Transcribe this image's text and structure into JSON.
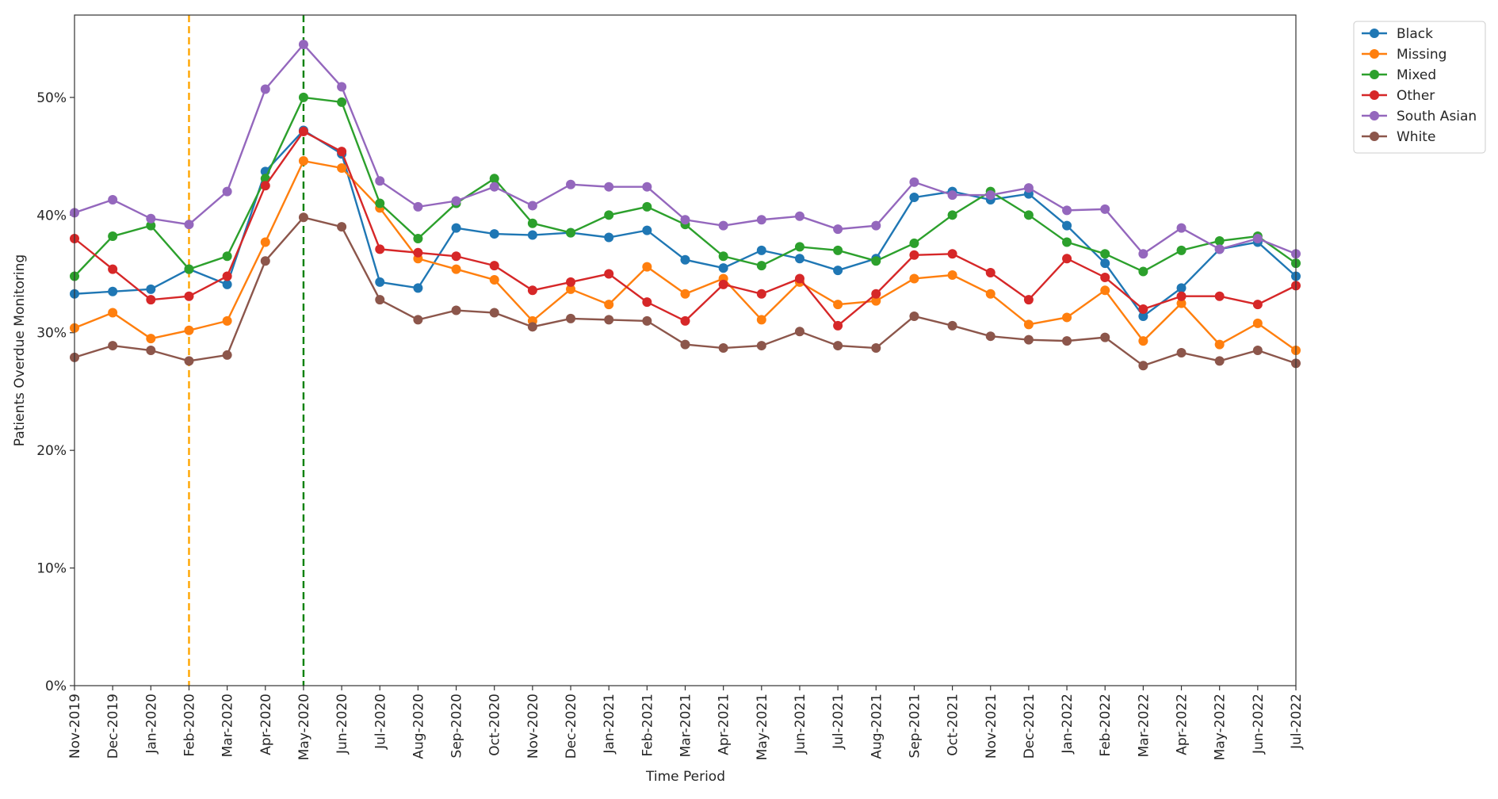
{
  "chart_data": {
    "type": "line",
    "x_label": "Time Period",
    "y_label": "Patients Overdue Monitoring",
    "categories": [
      "Nov-2019",
      "Dec-2019",
      "Jan-2020",
      "Feb-2020",
      "Mar-2020",
      "Apr-2020",
      "May-2020",
      "Jun-2020",
      "Jul-2020",
      "Aug-2020",
      "Sep-2020",
      "Oct-2020",
      "Nov-2020",
      "Dec-2020",
      "Jan-2021",
      "Feb-2021",
      "Mar-2021",
      "Apr-2021",
      "May-2021",
      "Jun-2021",
      "Jul-2021",
      "Aug-2021",
      "Sep-2021",
      "Oct-2021",
      "Nov-2021",
      "Dec-2021",
      "Jan-2022",
      "Feb-2022",
      "Mar-2022",
      "Apr-2022",
      "May-2022",
      "Jun-2022",
      "Jul-2022"
    ],
    "series": [
      {
        "name": "Black",
        "color": "#1f77b4",
        "values": [
          33.3,
          33.5,
          33.7,
          35.4,
          34.1,
          43.7,
          47.2,
          45.2,
          34.3,
          33.8,
          38.9,
          38.4,
          38.3,
          38.5,
          38.1,
          38.7,
          36.2,
          35.5,
          37.0,
          36.3,
          35.3,
          36.3,
          41.5,
          42.0,
          41.3,
          41.8,
          39.1,
          35.9,
          31.4,
          33.8,
          37.1,
          37.7,
          34.8
        ]
      },
      {
        "name": "Missing",
        "color": "#ff7f0e",
        "values": [
          30.4,
          31.7,
          29.5,
          30.2,
          31.0,
          37.7,
          44.6,
          44.0,
          40.6,
          36.3,
          35.4,
          34.5,
          31.0,
          33.7,
          32.4,
          35.6,
          33.3,
          34.6,
          31.1,
          34.3,
          32.4,
          32.7,
          34.6,
          34.9,
          33.3,
          30.7,
          31.3,
          33.6,
          29.3,
          32.5,
          29.0,
          30.8,
          28.5
        ]
      },
      {
        "name": "Mixed",
        "color": "#2ca02c",
        "values": [
          34.8,
          38.2,
          39.1,
          35.4,
          36.5,
          43.1,
          50.0,
          49.6,
          41.0,
          38.0,
          41.0,
          43.1,
          39.3,
          38.5,
          40.0,
          40.7,
          39.2,
          36.5,
          35.7,
          37.3,
          37.0,
          36.1,
          37.6,
          40.0,
          42.0,
          40.0,
          37.7,
          36.7,
          35.2,
          37.0,
          37.8,
          38.2,
          35.9
        ]
      },
      {
        "name": "Other",
        "color": "#d62728",
        "values": [
          38.0,
          35.4,
          32.8,
          33.1,
          34.8,
          42.5,
          47.1,
          45.4,
          37.1,
          36.8,
          36.5,
          35.7,
          33.6,
          34.3,
          35.0,
          32.6,
          31.0,
          34.1,
          33.3,
          34.6,
          30.6,
          33.3,
          36.6,
          36.7,
          35.1,
          32.8,
          36.3,
          34.7,
          32.0,
          33.1,
          33.1,
          32.4,
          34.0
        ]
      },
      {
        "name": "South Asian",
        "color": "#9467bd",
        "values": [
          40.2,
          41.3,
          39.7,
          39.2,
          42.0,
          50.7,
          54.5,
          50.9,
          42.9,
          40.7,
          41.2,
          42.4,
          40.8,
          42.6,
          42.4,
          42.4,
          39.6,
          39.1,
          39.6,
          39.9,
          38.8,
          39.1,
          42.8,
          41.7,
          41.7,
          42.3,
          40.4,
          40.5,
          36.7,
          38.9,
          37.1,
          38.0,
          36.7
        ]
      },
      {
        "name": "White",
        "color": "#8c564b",
        "values": [
          27.9,
          28.9,
          28.5,
          27.6,
          28.1,
          36.1,
          39.8,
          39.0,
          32.8,
          31.1,
          31.9,
          31.7,
          30.5,
          31.2,
          31.1,
          31.0,
          29.0,
          28.7,
          28.9,
          30.1,
          28.9,
          28.7,
          31.4,
          30.6,
          29.7,
          29.4,
          29.3,
          29.6,
          27.2,
          28.3,
          27.6,
          28.5,
          27.4
        ]
      }
    ],
    "ylim": [
      0,
      57
    ],
    "yticks": [
      {
        "value": 0,
        "label": "0%"
      },
      {
        "value": 10,
        "label": "10%"
      },
      {
        "value": 20,
        "label": "20%"
      },
      {
        "value": 30,
        "label": "30%"
      },
      {
        "value": 40,
        "label": "40%"
      },
      {
        "value": 50,
        "label": "50%"
      }
    ],
    "vlines": [
      {
        "x": "Feb-2020",
        "color": "#ffa500"
      },
      {
        "x": "May-2020",
        "color": "#008000"
      }
    ],
    "legend": "outside-upper-right",
    "grid": false
  }
}
